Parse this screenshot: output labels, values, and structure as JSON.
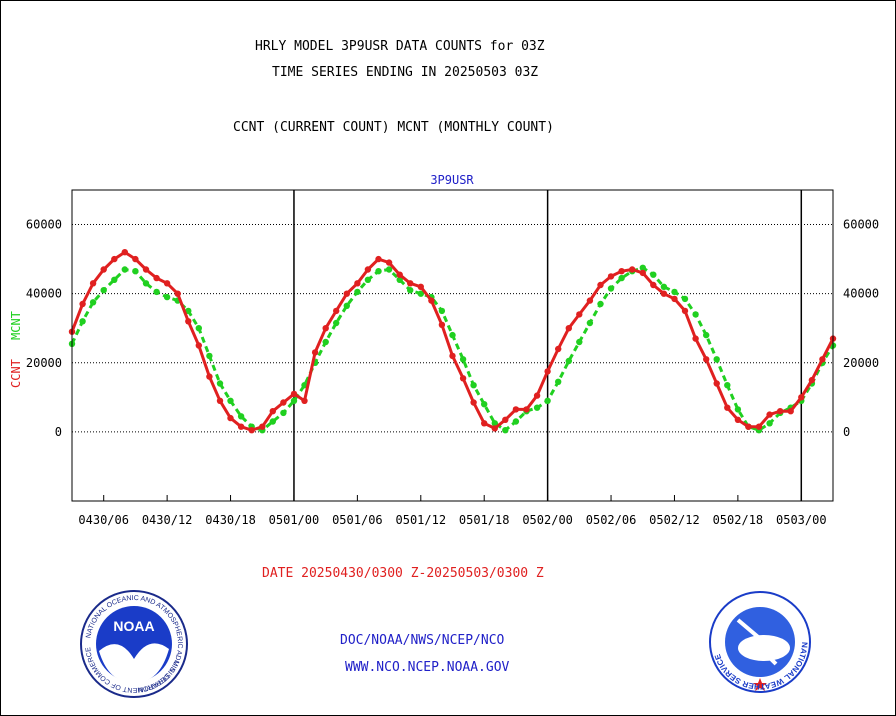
{
  "titles": {
    "line1": "HRLY MODEL 3P9USR DATA COUNTS for 03Z",
    "line2": "TIME SERIES ENDING IN 20250503 03Z",
    "line3": "CCNT (CURRENT COUNT) MCNT (MONTHLY COUNT)"
  },
  "footer": {
    "date_range": "DATE 20250430/0300 Z-20250503/0300 Z",
    "org": "DOC/NOAA/NWS/NCEP/NCO",
    "url": "WWW.NCO.NCEP.NOAA.GOV"
  },
  "logos": {
    "noaa_text": "NOAA",
    "noaa_ring_top": "NATIONAL OCEANIC AND ATMOSPHERIC ADMINISTRATION",
    "noaa_ring_bottom": "U.S. DEPARTMENT OF COMMERCE",
    "nws_ring": "NATIONAL WEATHER SERVICE"
  },
  "chart_data": {
    "type": "line",
    "title": "3P9USR",
    "ylabel_ccnt": "CCNT",
    "ylabel_mcnt": "MCNT",
    "ylim": [
      -20000,
      70000
    ],
    "yticks": [
      0,
      20000,
      40000,
      60000
    ],
    "grid": true,
    "x_unit": "hours since 20250430/0300 Z",
    "xlim": [
      0,
      72
    ],
    "xticks": [
      {
        "x": 3,
        "label": "0430/06"
      },
      {
        "x": 9,
        "label": "0430/12"
      },
      {
        "x": 15,
        "label": "0430/18"
      },
      {
        "x": 21,
        "label": "0501/00"
      },
      {
        "x": 27,
        "label": "0501/06"
      },
      {
        "x": 33,
        "label": "0501/12"
      },
      {
        "x": 39,
        "label": "0501/18"
      },
      {
        "x": 45,
        "label": "0502/00"
      },
      {
        "x": 51,
        "label": "0502/06"
      },
      {
        "x": 57,
        "label": "0502/12"
      },
      {
        "x": 63,
        "label": "0502/18"
      },
      {
        "x": 69,
        "label": "0503/00"
      }
    ],
    "day_boundaries": [
      21,
      45,
      69
    ],
    "series": [
      {
        "name": "CCNT",
        "color": "#e02020",
        "x": [
          0,
          1,
          2,
          3,
          4,
          5,
          6,
          7,
          8,
          9,
          10,
          11,
          12,
          13,
          14,
          15,
          16,
          17,
          18,
          19,
          20,
          21,
          22,
          23,
          24,
          25,
          26,
          27,
          28,
          29,
          30,
          31,
          32,
          33,
          34,
          35,
          36,
          37,
          38,
          39,
          40,
          41,
          42,
          43,
          44,
          45,
          46,
          47,
          48,
          49,
          50,
          51,
          52,
          53,
          54,
          55,
          56,
          57,
          58,
          59,
          60,
          61,
          62,
          63,
          64,
          65,
          66,
          67,
          68,
          69,
          70,
          71,
          72
        ],
        "values": [
          29000,
          37000,
          43000,
          47000,
          50000,
          52000,
          50000,
          47000,
          44500,
          43000,
          40000,
          32000,
          25000,
          16000,
          9000,
          4000,
          1500,
          500,
          1500,
          6000,
          8500,
          11000,
          9000,
          23000,
          30000,
          35000,
          40000,
          43000,
          47000,
          50000,
          49000,
          45500,
          43000,
          42000,
          38000,
          31000,
          22000,
          15500,
          8500,
          2500,
          1000,
          3500,
          6500,
          6500,
          10500,
          17500,
          24000,
          30000,
          34000,
          38000,
          42500,
          45000,
          46500,
          47000,
          46000,
          42500,
          40000,
          38500,
          35000,
          27000,
          21000,
          14000,
          7000,
          3500,
          1500,
          1500,
          5000,
          6000,
          6000,
          10000,
          15000,
          21000,
          27000
        ]
      },
      {
        "name": "MCNT",
        "color": "#20d020",
        "x": [
          0,
          1,
          2,
          3,
          4,
          5,
          6,
          7,
          8,
          9,
          10,
          11,
          12,
          13,
          14,
          15,
          16,
          17,
          18,
          19,
          20,
          21,
          22,
          23,
          24,
          25,
          26,
          27,
          28,
          29,
          30,
          31,
          32,
          33,
          34,
          35,
          36,
          37,
          38,
          39,
          40,
          41,
          42,
          43,
          44,
          45,
          46,
          47,
          48,
          49,
          50,
          51,
          52,
          53,
          54,
          55,
          56,
          57,
          58,
          59,
          60,
          61,
          62,
          63,
          64,
          65,
          66,
          67,
          68,
          69,
          70,
          71,
          72
        ],
        "values": [
          25500,
          32000,
          37500,
          41000,
          44000,
          47000,
          46500,
          43000,
          40500,
          39000,
          38000,
          35000,
          30000,
          22000,
          14000,
          9000,
          4500,
          1500,
          500,
          3000,
          5500,
          9000,
          13500,
          20000,
          26000,
          31500,
          36500,
          40500,
          44000,
          46500,
          47000,
          44000,
          41000,
          40000,
          39000,
          35000,
          28000,
          21000,
          13500,
          8000,
          2500,
          500,
          3000,
          6000,
          7000,
          9000,
          14500,
          20500,
          26000,
          31500,
          37000,
          41500,
          44500,
          46500,
          47500,
          45500,
          42000,
          40500,
          38500,
          34000,
          28000,
          21000,
          13500,
          6500,
          1500,
          500,
          2500,
          5500,
          7000,
          9000,
          14000,
          20000,
          25000
        ]
      }
    ]
  }
}
